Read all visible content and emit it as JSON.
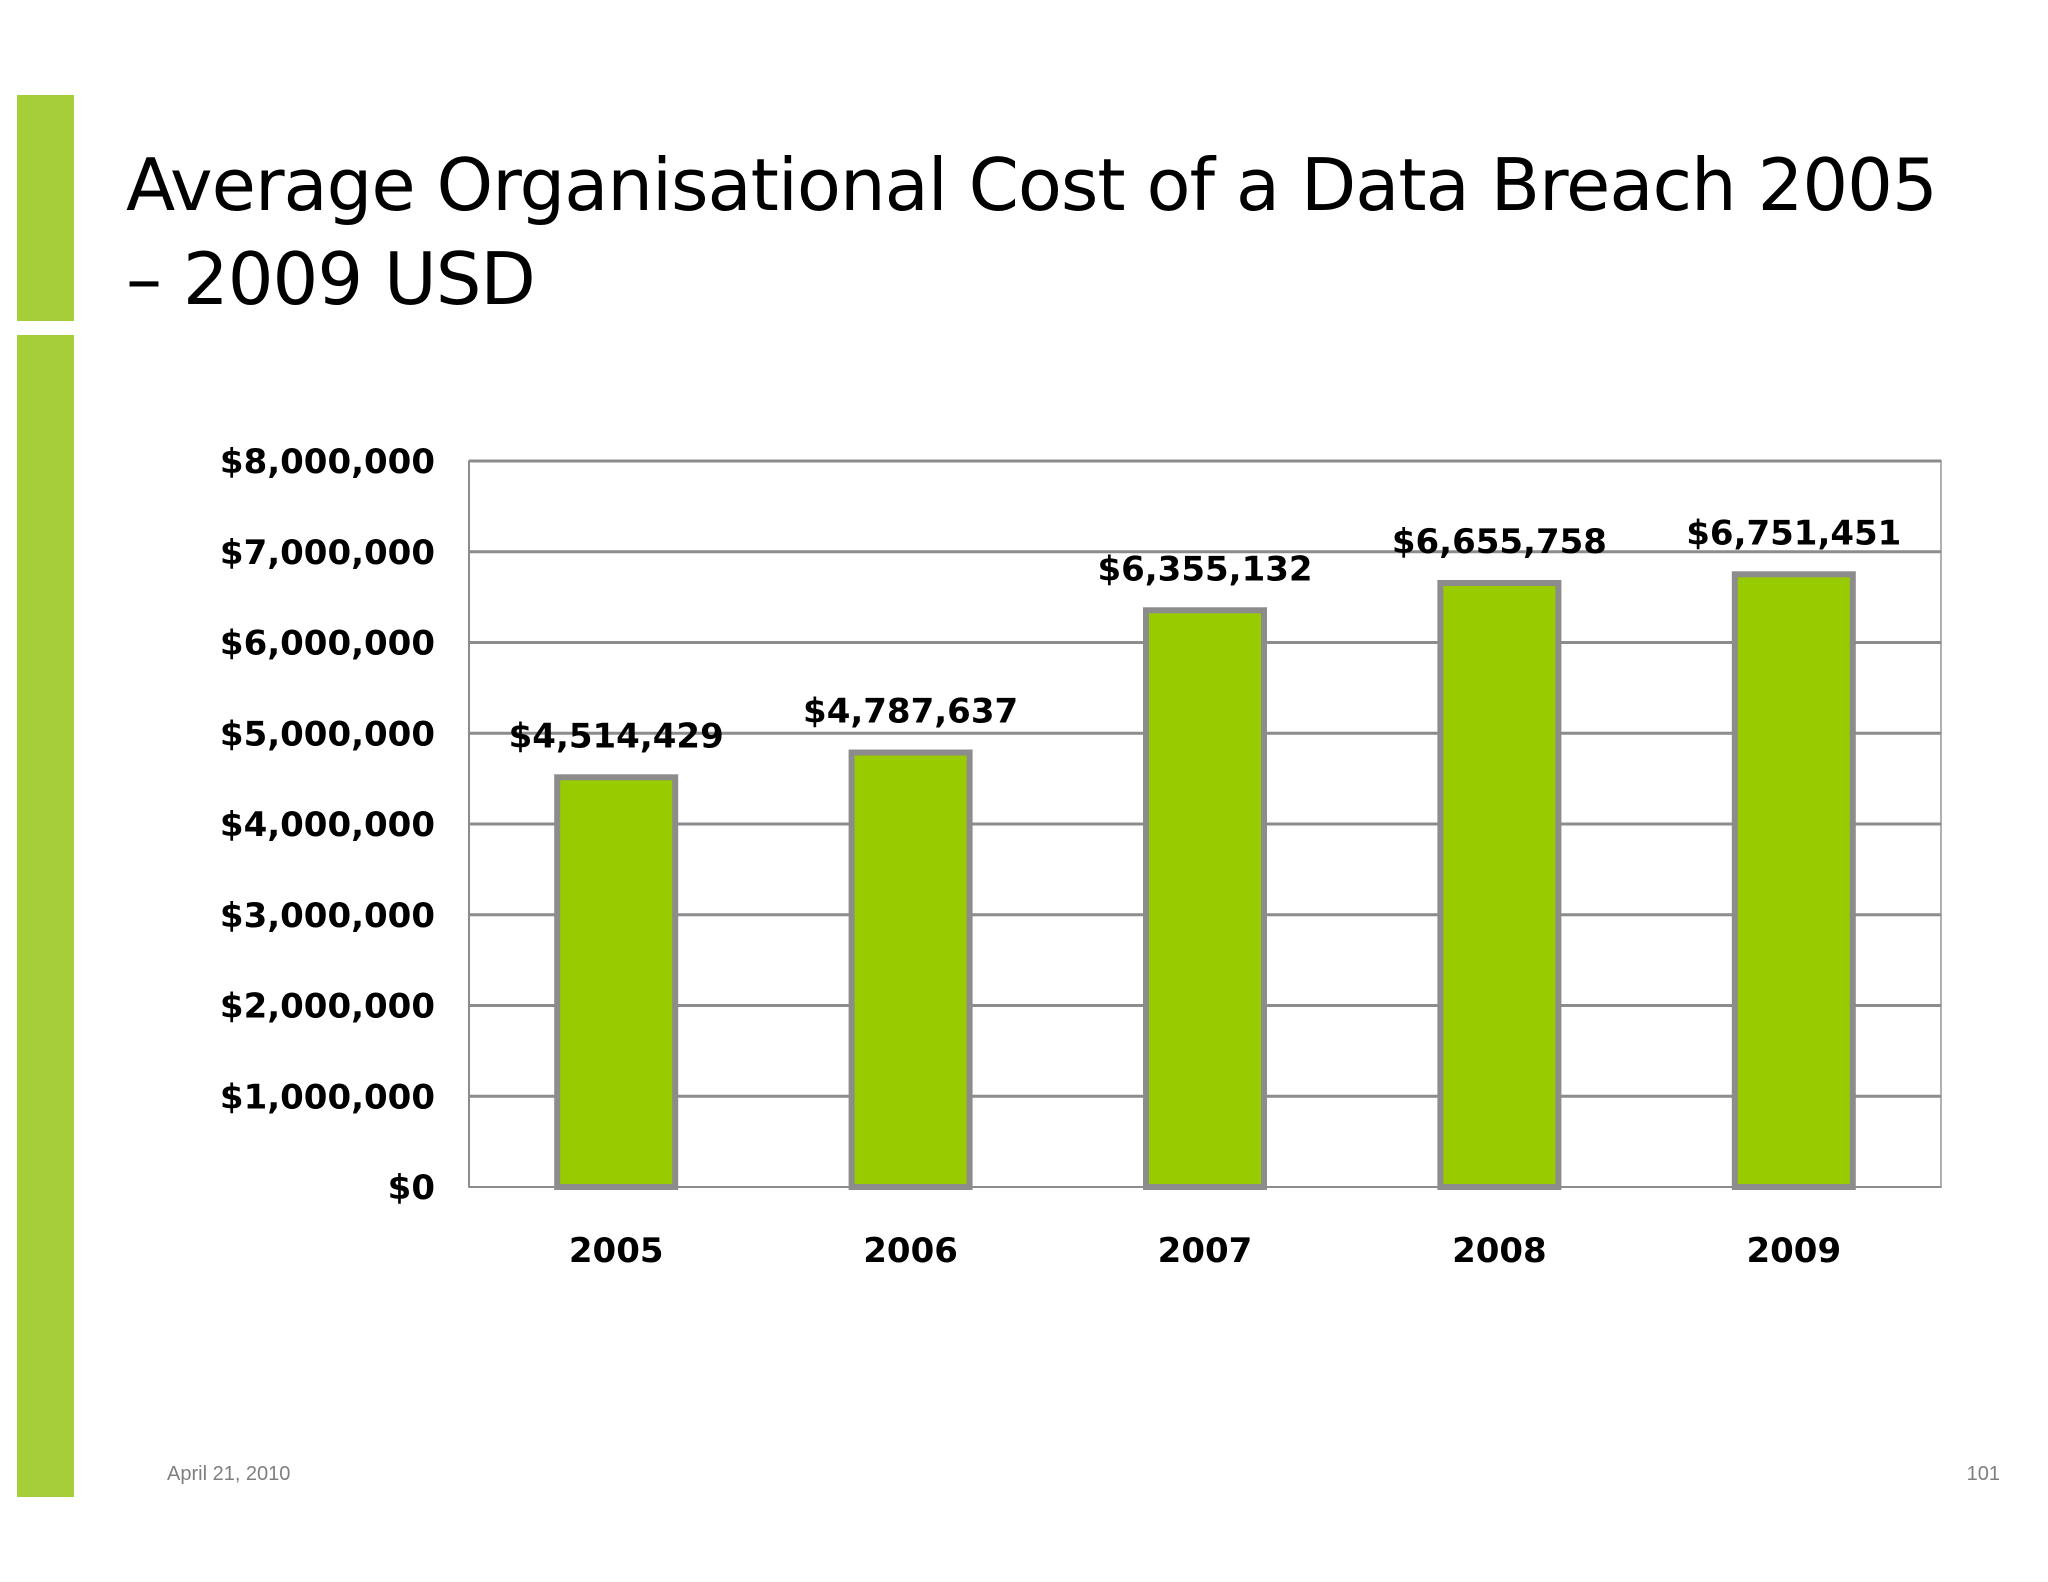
{
  "slide": {
    "title": "Average Organisational Cost of a Data Breach 2005 – 2009 USD",
    "footer_date": "April 21, 2010",
    "page_number": "101"
  },
  "colors": {
    "accent": "#a6ce39",
    "bar_fill": "#99cc00",
    "bar_border": "#8c8c8c",
    "gridline": "#8c8c8c"
  },
  "chart_data": {
    "type": "bar",
    "title": "",
    "xlabel": "",
    "ylabel": "",
    "categories": [
      "2005",
      "2006",
      "2007",
      "2008",
      "2009"
    ],
    "values": [
      4514429,
      4787637,
      6355132,
      6655758,
      6751451
    ],
    "data_labels": [
      "$4,514,429",
      "$4,787,637",
      "$6,355,132",
      "$6,655,758",
      "$6,751,451"
    ],
    "ylim": [
      0,
      8000000
    ],
    "y_ticks": [
      {
        "value": 0,
        "label": "$0"
      },
      {
        "value": 1000000,
        "label": "$1,000,000"
      },
      {
        "value": 2000000,
        "label": "$2,000,000"
      },
      {
        "value": 3000000,
        "label": "$3,000,000"
      },
      {
        "value": 4000000,
        "label": "$4,000,000"
      },
      {
        "value": 5000000,
        "label": "$5,000,000"
      },
      {
        "value": 6000000,
        "label": "$6,000,000"
      },
      {
        "value": 7000000,
        "label": "$7,000,000"
      },
      {
        "value": 8000000,
        "label": "$8,000,000"
      }
    ],
    "grid": true,
    "legend": "none"
  }
}
